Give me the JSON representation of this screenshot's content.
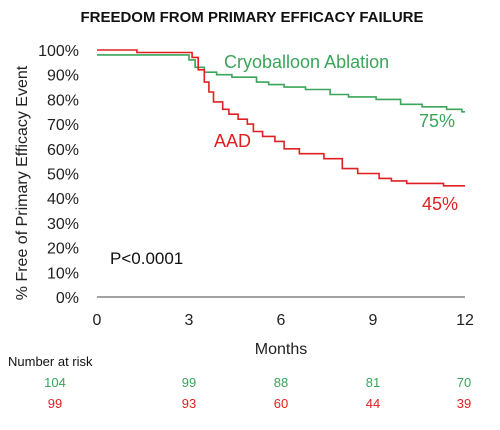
{
  "chart_data": {
    "type": "line",
    "title": "FREEDOM FROM PRIMARY EFFICACY FAILURE",
    "xlabel": "Months",
    "ylabel": "% Free of Primary Efficacy Event",
    "xlim": [
      0,
      12
    ],
    "ylim": [
      0,
      100
    ],
    "x_ticks": [
      "0",
      "3",
      "6",
      "9",
      "12"
    ],
    "y_ticks": [
      "0%",
      "10%",
      "20%",
      "30%",
      "40%",
      "50%",
      "60%",
      "70%",
      "80%",
      "90%",
      "100%"
    ],
    "grid": false,
    "series": [
      {
        "name": "Cryoballoon Ablation",
        "color": "#3aa55a",
        "end_label": "75%",
        "x": [
          0,
          0.2,
          2.8,
          3.0,
          3.2,
          3.5,
          3.9,
          4.4,
          5.2,
          5.6,
          6.1,
          6.8,
          7.6,
          8.2,
          9.1,
          9.9,
          10.6,
          11.4,
          11.9,
          12
        ],
        "y": [
          98,
          98,
          98,
          96,
          93,
          91,
          90,
          89,
          87,
          86,
          85,
          84,
          82,
          81,
          80,
          78,
          77,
          76,
          75,
          75
        ]
      },
      {
        "name": "AAD",
        "color": "#e02020",
        "end_label": "45%",
        "x": [
          0,
          1.3,
          3.0,
          3.1,
          3.3,
          3.5,
          3.65,
          3.8,
          4.1,
          4.3,
          4.6,
          4.9,
          5.1,
          5.4,
          5.8,
          6.1,
          6.6,
          7.4,
          8.0,
          8.5,
          9.2,
          9.6,
          10.1,
          10.8,
          11.3,
          12
        ],
        "y": [
          100,
          99,
          99,
          97,
          92,
          87,
          83,
          79,
          76,
          74,
          72,
          70,
          67,
          65,
          63,
          60,
          58,
          56,
          52,
          50,
          48,
          47,
          46,
          46,
          45,
          45
        ]
      }
    ],
    "annotation": "P<0.0001",
    "risk_table": {
      "title": "Number at risk",
      "months": [
        0,
        3,
        6,
        9,
        12
      ],
      "rows": [
        {
          "name": "Cryoballoon Ablation",
          "color": "#3aa55a",
          "values": [
            "104",
            "99",
            "88",
            "81",
            "70"
          ]
        },
        {
          "name": "AAD",
          "color": "#e02020",
          "values": [
            "99",
            "93",
            "60",
            "44",
            "39"
          ]
        }
      ]
    }
  }
}
